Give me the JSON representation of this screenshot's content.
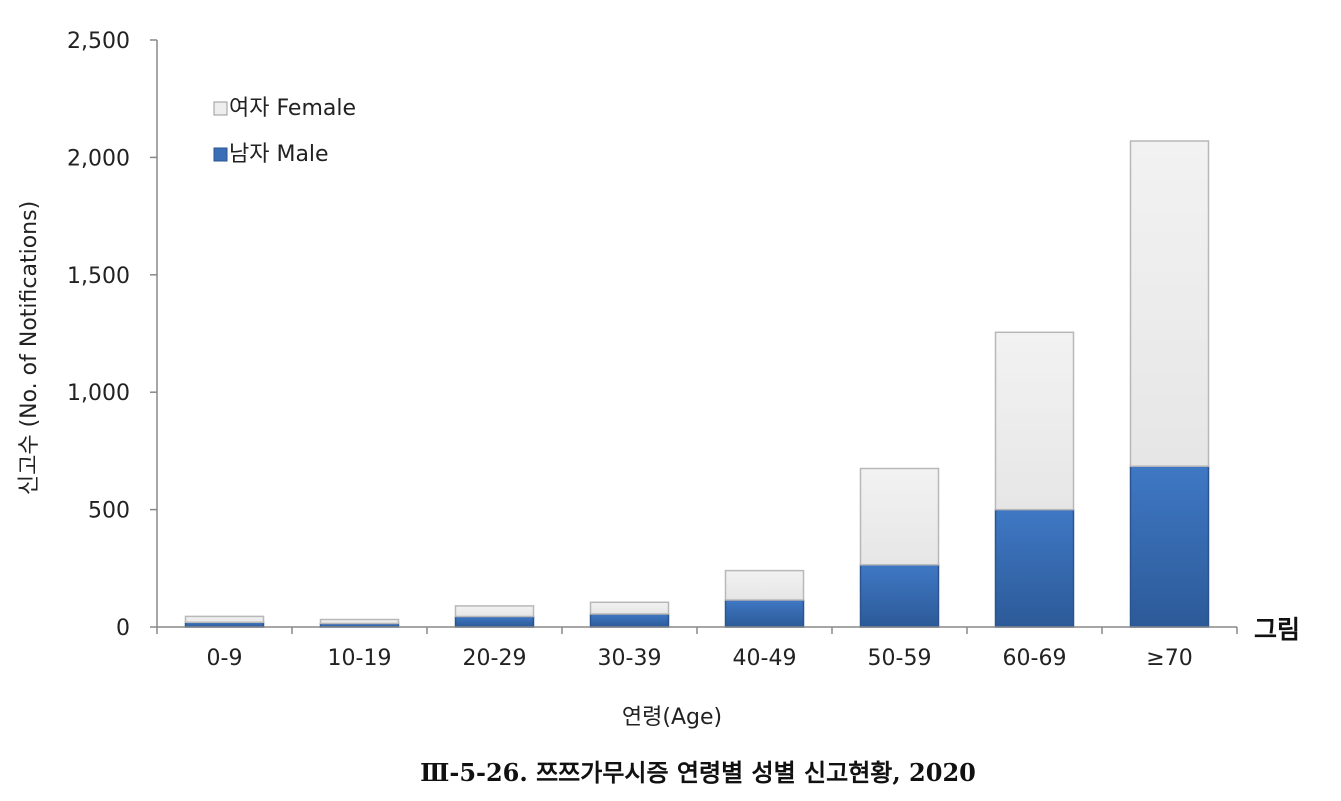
{
  "chart_data": {
    "type": "bar",
    "stacked": true,
    "title": "",
    "caption": "Ⅲ-5-26. 쯔쯔가무시증 연령별 성별 신고현황, 2020",
    "side_label": "그림",
    "xlabel": "연령(Age)",
    "ylabel": "신고수 (No. of Notifications)",
    "ylim": [
      0,
      2500
    ],
    "yticks": [
      0,
      500,
      1000,
      1500,
      2000,
      2500
    ],
    "ytick_labels": [
      "0",
      "500",
      "1,000",
      "1,500",
      "2,000",
      "2,500"
    ],
    "categories": [
      "0-9",
      "10-19",
      "20-29",
      "30-39",
      "40-49",
      "50-59",
      "60-69",
      "≥70"
    ],
    "series": [
      {
        "name": "남자 Male",
        "color": "#3a6fb8",
        "values": [
          20,
          15,
          45,
          55,
          115,
          265,
          500,
          685
        ]
      },
      {
        "name": "여자 Female",
        "color": "#eeeeee",
        "values": [
          25,
          17,
          45,
          50,
          125,
          410,
          755,
          1385
        ]
      }
    ],
    "legend": {
      "placement": "top-left",
      "order": [
        "여자 Female",
        "남자 Male"
      ]
    },
    "grid": false
  }
}
